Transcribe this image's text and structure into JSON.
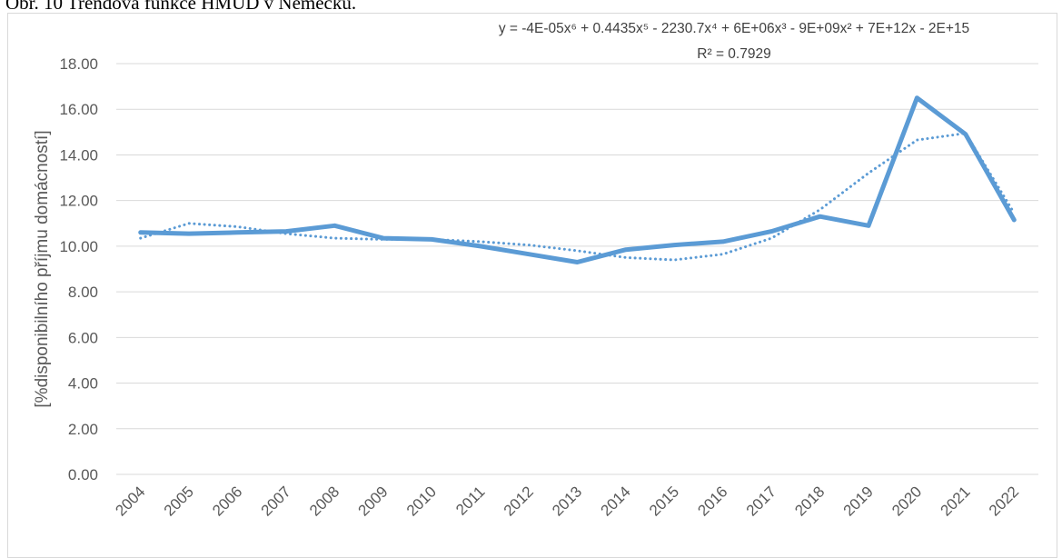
{
  "document": {
    "caption": "Obr. 10 Trendová funkce HMUD v Německu."
  },
  "chart_data": {
    "type": "line",
    "title": "",
    "xlabel": "",
    "ylabel": "[%disponibilního příjmu domácností]",
    "ylim": [
      0,
      18
    ],
    "y_tick_step": 2,
    "y_tick_labels": [
      "0.00",
      "2.00",
      "4.00",
      "6.00",
      "8.00",
      "10.00",
      "12.00",
      "14.00",
      "16.00",
      "18.00"
    ],
    "grid": "horizontal",
    "legend": "none",
    "categories": [
      "2004",
      "2005",
      "2006",
      "2007",
      "2008",
      "2009",
      "2010",
      "2011",
      "2012",
      "2013",
      "2014",
      "2015",
      "2016",
      "2017",
      "2018",
      "2019",
      "2020",
      "2021",
      "2022"
    ],
    "series": [
      {
        "values": [
          10.6,
          10.55,
          10.6,
          10.65,
          10.9,
          10.35,
          10.3,
          10.0,
          9.65,
          9.3,
          9.85,
          10.05,
          10.2,
          10.65,
          11.3,
          10.9,
          16.5,
          14.9,
          11.15
        ],
        "color": "#5b9bd5",
        "style": "solid"
      },
      {
        "values": [
          10.35,
          11.0,
          10.85,
          10.55,
          10.35,
          10.3,
          10.3,
          10.2,
          10.05,
          9.8,
          9.5,
          9.4,
          9.65,
          10.35,
          11.6,
          13.2,
          14.65,
          14.95,
          11.45
        ],
        "color": "#5b9bd5",
        "style": "dotted"
      }
    ],
    "annotation": {
      "equation": "y = -4E-05x⁶ + 0.4435x⁵ - 2230.7x⁴ + 6E+06x³ - 9E+09x² + 7E+12x - 2E+15",
      "r_squared": "R² = 0.7929"
    }
  }
}
